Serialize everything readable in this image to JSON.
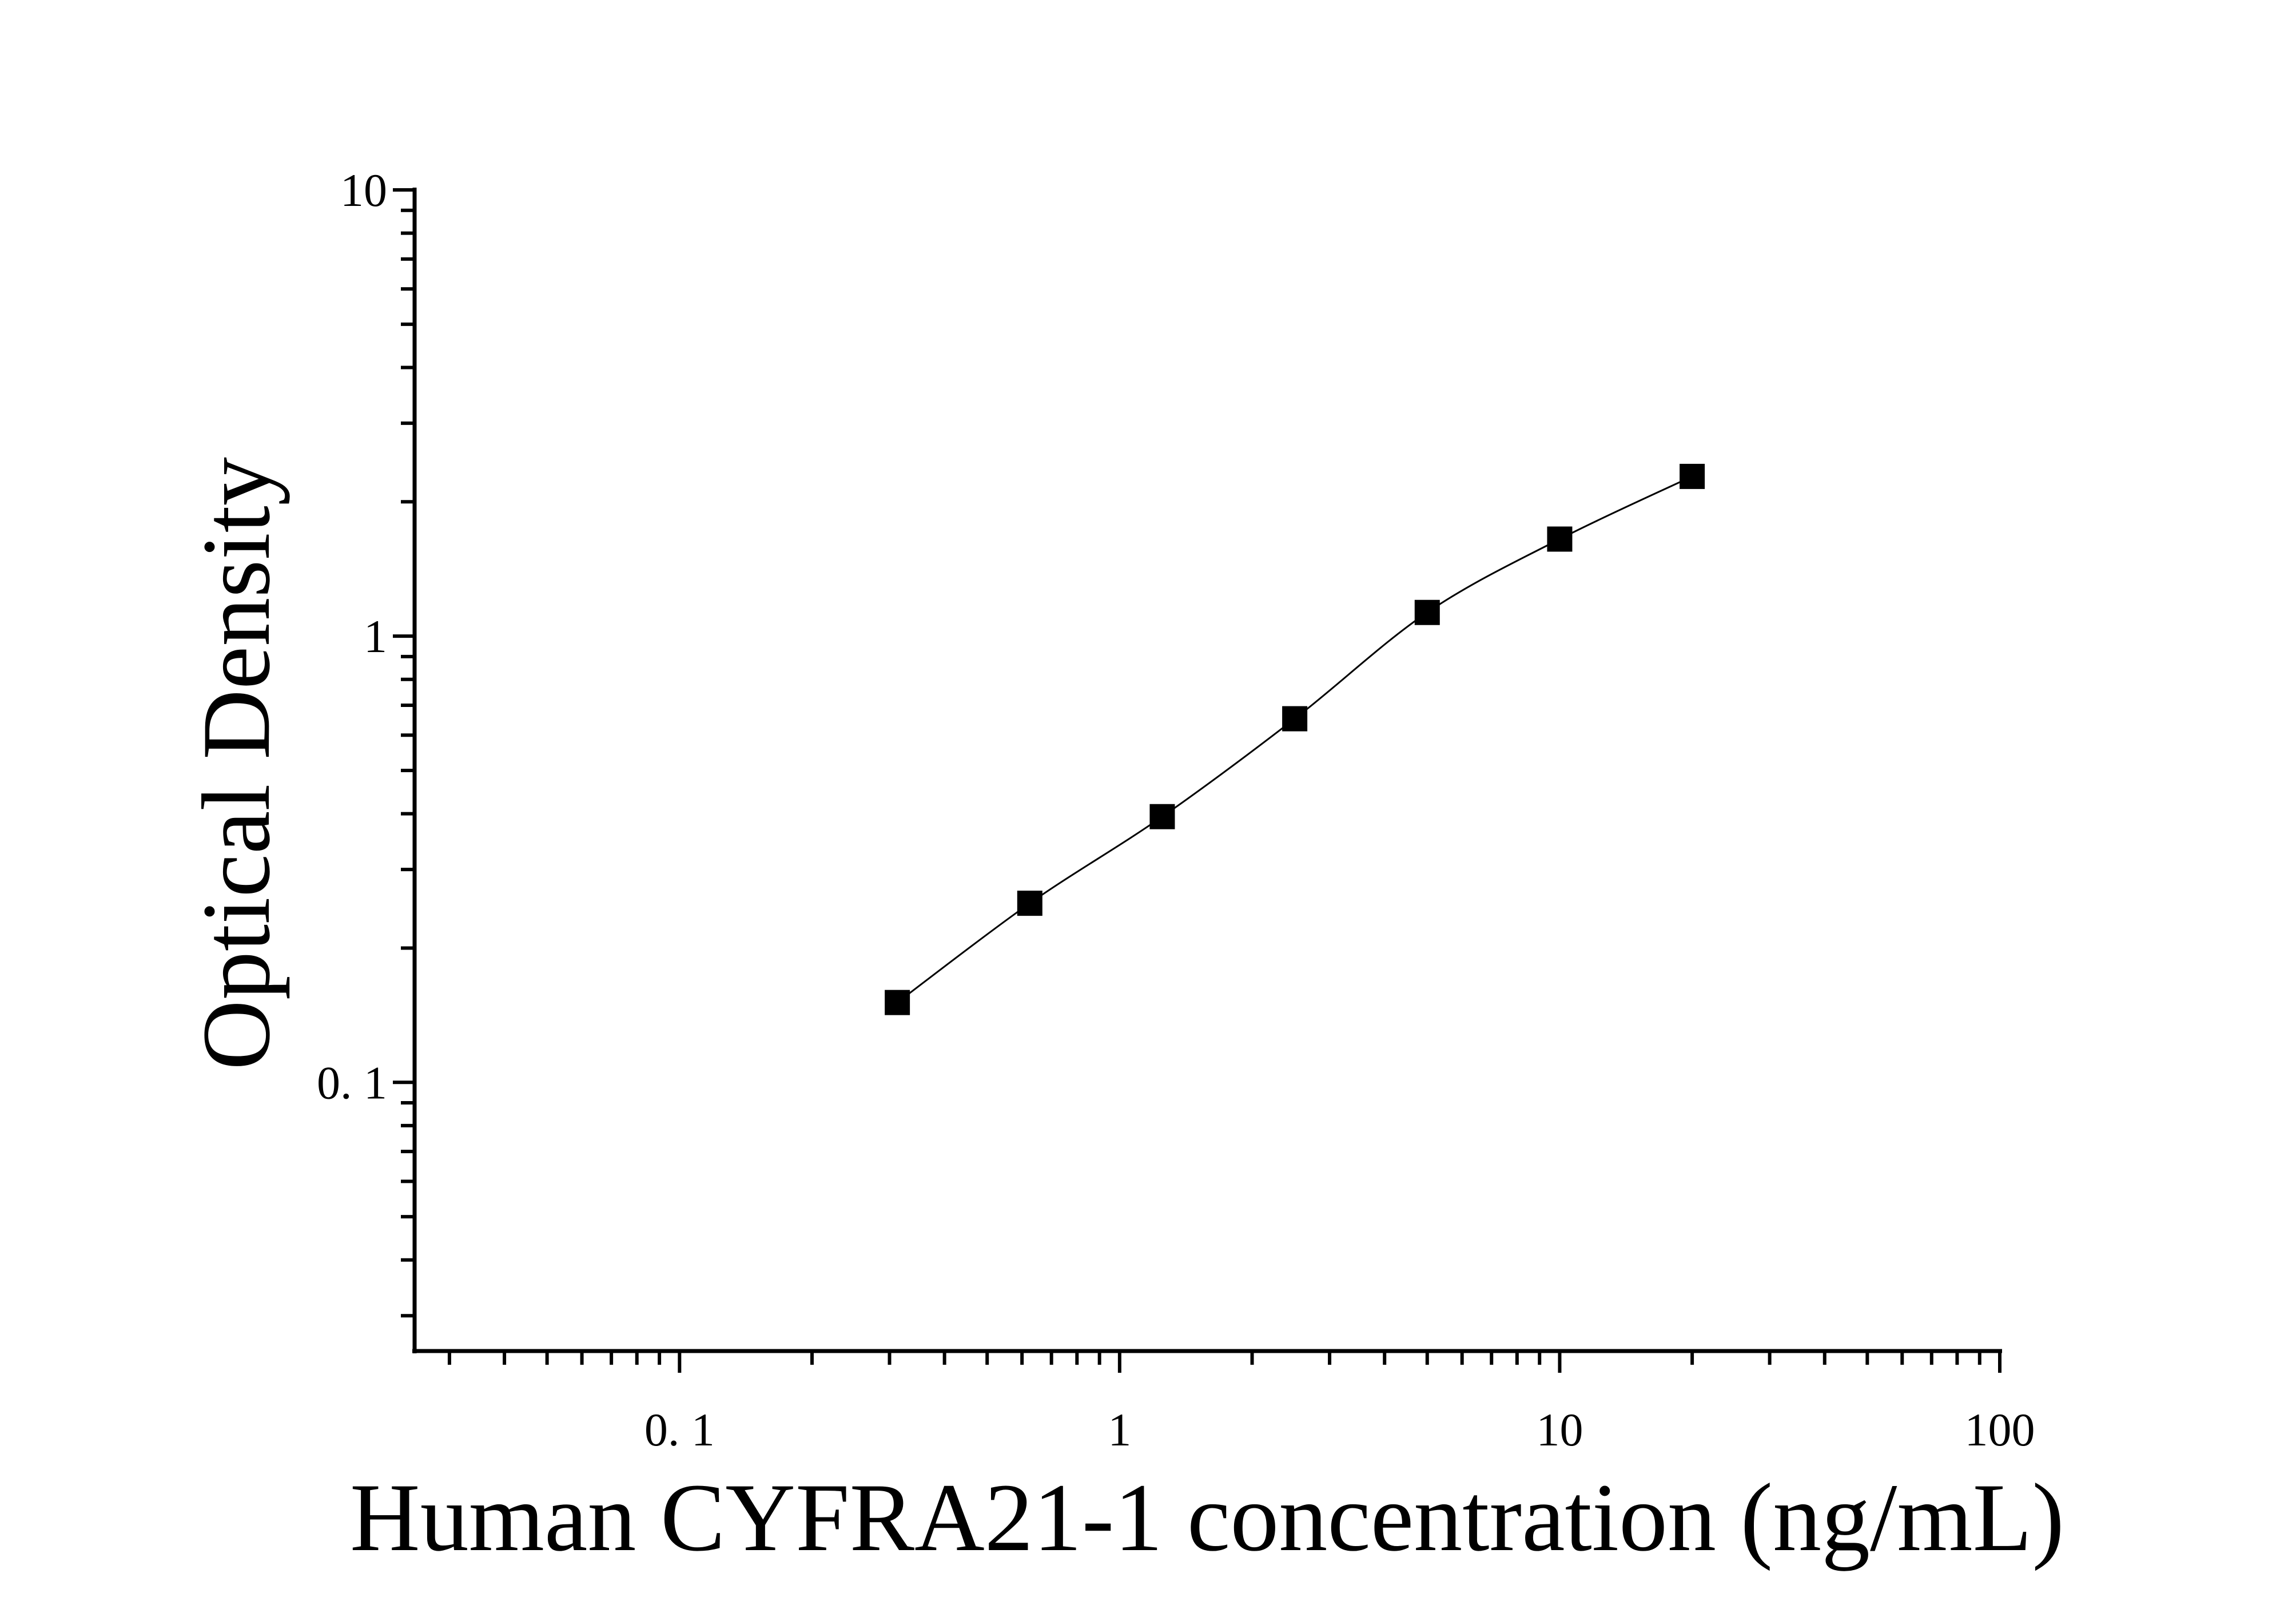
{
  "chart_data": {
    "type": "scatter",
    "title": "",
    "xlabel": "Human CYFRA21-1 concentration (ng/mL)",
    "ylabel": "Optical Density",
    "x_scale": "log",
    "y_scale": "log",
    "xlim": [
      0.025,
      100
    ],
    "ylim": [
      0.025,
      10
    ],
    "x_ticks": [
      {
        "value": 0.1,
        "label": "0. 1"
      },
      {
        "value": 1,
        "label": "1"
      },
      {
        "value": 10,
        "label": "10"
      },
      {
        "value": 100,
        "label": "100"
      }
    ],
    "y_ticks": [
      {
        "value": 0.1,
        "label": "0. 1"
      },
      {
        "value": 1,
        "label": "1"
      },
      {
        "value": 10,
        "label": "10"
      }
    ],
    "grid": false,
    "marker": "square",
    "fit_curve": true,
    "color": "#000000",
    "x": [
      0.3125,
      0.625,
      1.25,
      2.5,
      5,
      10,
      20
    ],
    "y": [
      0.151,
      0.252,
      0.394,
      0.653,
      1.13,
      1.65,
      2.28
    ]
  }
}
